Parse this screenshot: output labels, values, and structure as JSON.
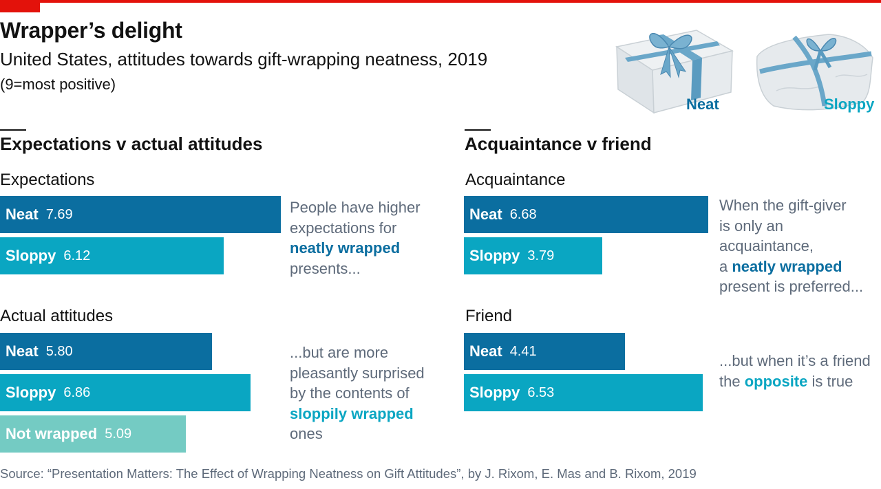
{
  "header": {
    "title": "Wrapper’s delight",
    "subtitle": "United States, attitudes towards gift-wrapping neatness, 2019",
    "note": "(9=most positive)"
  },
  "legend": {
    "neat": "Neat",
    "sloppy": "Sloppy"
  },
  "colors": {
    "neat": "#0b6ea0",
    "sloppy": "#0aa6c2",
    "not_wrapped": "#74cbc3",
    "accent": "#e3120b"
  },
  "icons": [
    "neat-gift-icon",
    "sloppy-gift-icon"
  ],
  "chart_data": [
    {
      "type": "bar",
      "orientation": "horizontal",
      "title": "Expectations v actual attitudes",
      "xlim": [
        0,
        9
      ],
      "groups": [
        {
          "label": "Expectations",
          "bars": [
            {
              "name": "Neat",
              "value": "7.69"
            },
            {
              "name": "Sloppy",
              "value": "6.12"
            }
          ]
        },
        {
          "label": "Actual attitudes",
          "bars": [
            {
              "name": "Neat",
              "value": "5.80"
            },
            {
              "name": "Sloppy",
              "value": "6.86"
            },
            {
              "name": "Not wrapped",
              "value": "5.09"
            }
          ]
        }
      ]
    },
    {
      "type": "bar",
      "orientation": "horizontal",
      "title": "Acquaintance v friend",
      "xlim": [
        0,
        9
      ],
      "groups": [
        {
          "label": "Acquaintance",
          "bars": [
            {
              "name": "Neat",
              "value": "6.68"
            },
            {
              "name": "Sloppy",
              "value": "3.79"
            }
          ]
        },
        {
          "label": "Friend",
          "bars": [
            {
              "name": "Neat",
              "value": "4.41"
            },
            {
              "name": "Sloppy",
              "value": "6.53"
            }
          ]
        }
      ]
    }
  ],
  "annotations": {
    "expectations": {
      "l1": "People have higher",
      "l2": "expectations for",
      "hl": "neatly wrapped",
      "l4": "presents..."
    },
    "actual": {
      "l1": "...but are more",
      "l2": "pleasantly surprised",
      "l3": "by the contents of",
      "hl": "sloppily wrapped",
      "l5": "ones"
    },
    "acquaintance": {
      "l1": "When the gift-giver",
      "l2": "is only an acquaintance,",
      "l3a": "a ",
      "hl": "neatly wrapped",
      "l4": "present is preferred..."
    },
    "friend": {
      "l1": "...but when it’s a friend",
      "l2a": "the ",
      "hl": "opposite",
      "l2b": " is true"
    }
  },
  "source": "Source: “Presentation Matters: The Effect of Wrapping Neatness on Gift Attitudes”, by J. Rixom, E. Mas and B. Rixom, 2019"
}
